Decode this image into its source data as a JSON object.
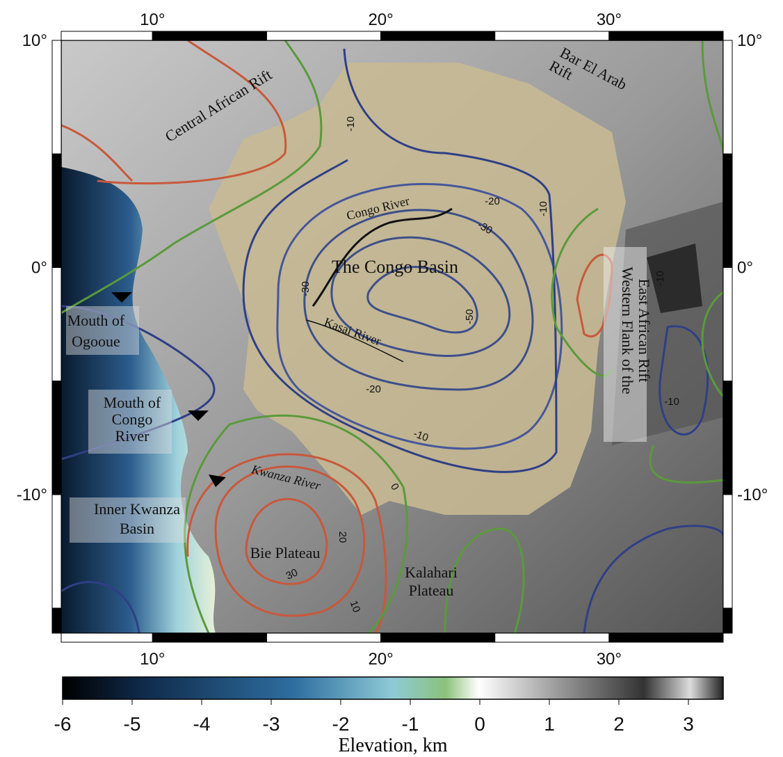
{
  "map": {
    "lon_range": [
      6,
      35
    ],
    "lat_range": [
      -16.1,
      10
    ],
    "lon_ticks": [
      {
        "value": 10,
        "label": "10°"
      },
      {
        "value": 20,
        "label": "20°"
      },
      {
        "value": 30,
        "label": "30°"
      }
    ],
    "lat_ticks": [
      {
        "value": 10,
        "label": "10°"
      },
      {
        "value": 0,
        "label": "0°"
      },
      {
        "value": -10,
        "label": "-10°"
      }
    ],
    "labels": [
      {
        "lines": [
          "Central African Rift"
        ]
      },
      {
        "lines": [
          "Bar El Arab",
          "Rift"
        ]
      },
      {
        "lines": [
          "Congo River"
        ]
      },
      {
        "lines": [
          "The Congo Basin"
        ]
      },
      {
        "lines": [
          "Kasai River"
        ]
      },
      {
        "lines": [
          "Western Flank of the",
          "East African Rift"
        ]
      },
      {
        "lines": [
          "Mouth of",
          "Ogooue"
        ]
      },
      {
        "lines": [
          "Mouth of",
          "Congo",
          "River"
        ]
      },
      {
        "lines": [
          "Inner Kwanza",
          "Basin"
        ]
      },
      {
        "lines": [
          "Kwanza River"
        ]
      },
      {
        "lines": [
          "Bie Plateau"
        ]
      },
      {
        "lines": [
          "Kalahari",
          "Plateau"
        ]
      }
    ],
    "contour_labels": [
      -10,
      -20,
      -30,
      -10,
      -30,
      -50,
      -20,
      -10,
      0,
      20,
      30,
      10,
      -10,
      -10
    ],
    "colorbar": {
      "title": "Elevation, km",
      "lim": [
        -6,
        3.5
      ],
      "ticks": [
        -6,
        -5,
        -4,
        -3,
        -2,
        -1,
        0,
        1,
        2,
        3
      ]
    }
  }
}
